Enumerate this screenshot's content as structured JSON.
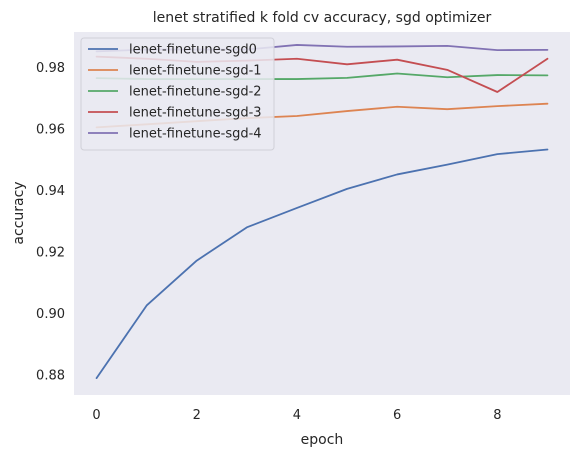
{
  "chart_data": {
    "type": "line",
    "title": "lenet stratified k fold cv accuracy, sgd optimizer",
    "xlabel": "epoch",
    "ylabel": "accuracy",
    "xlim": [
      -0.45,
      9.45
    ],
    "ylim": [
      0.8735,
      0.9915
    ],
    "xticks": [
      0,
      2,
      4,
      6,
      8
    ],
    "xtick_labels": [
      "0",
      "2",
      "4",
      "6",
      "8"
    ],
    "yticks": [
      0.88,
      0.9,
      0.92,
      0.94,
      0.96,
      0.98
    ],
    "ytick_labels": [
      "0.88",
      "0.90",
      "0.92",
      "0.94",
      "0.96",
      "0.98"
    ],
    "grid": false,
    "legend_position": "top-left",
    "background_color": "#eaeaf2",
    "x": [
      0,
      1,
      2,
      3,
      4,
      5,
      6,
      7,
      8,
      9
    ],
    "series": [
      {
        "name": "lenet-finetune-sgd0",
        "color": "#4c72b0",
        "values": [
          0.879,
          0.9026,
          0.9172,
          0.928,
          0.9343,
          0.9405,
          0.9452,
          0.9484,
          0.9518,
          0.9533
        ]
      },
      {
        "name": "lenet-finetune-sgd-1",
        "color": "#dd8452",
        "values": [
          0.9605,
          0.9615,
          0.9625,
          0.9635,
          0.9642,
          0.9658,
          0.9672,
          0.9664,
          0.9674,
          0.9682
        ]
      },
      {
        "name": "lenet-finetune-sgd-2",
        "color": "#55a868",
        "values": [
          0.9765,
          0.9762,
          0.9762,
          0.9762,
          0.9762,
          0.9766,
          0.978,
          0.9768,
          0.9775,
          0.9774
        ]
      },
      {
        "name": "lenet-finetune-sgd-3",
        "color": "#c44e52",
        "values": [
          0.9835,
          0.9828,
          0.9818,
          0.9822,
          0.9828,
          0.981,
          0.9825,
          0.9792,
          0.972,
          0.9828
        ]
      },
      {
        "name": "lenet-finetune-sgd-4",
        "color": "#8172b3",
        "values": [
          0.9852,
          0.9858,
          0.9858,
          0.9858,
          0.9873,
          0.9867,
          0.9868,
          0.987,
          0.9856,
          0.9857
        ]
      }
    ]
  }
}
